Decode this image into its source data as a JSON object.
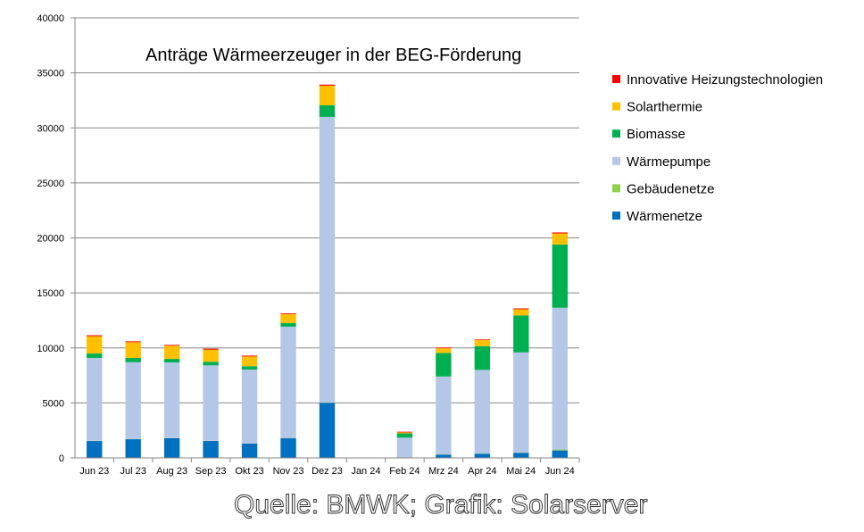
{
  "chart_data": {
    "type": "bar",
    "stacked": true,
    "title": "Anträge Wärmeerzeuger in der BEG-Förderung",
    "xlabel": "",
    "ylabel": "",
    "ylim": [
      0,
      40000
    ],
    "yticks": [
      "0",
      "5000",
      "10000",
      "15000",
      "20000",
      "25000",
      "30000",
      "35000",
      "40000"
    ],
    "ytick_values": [
      0,
      5000,
      10000,
      15000,
      20000,
      25000,
      30000,
      35000,
      40000
    ],
    "grid": true,
    "legend_position": "right",
    "categories": [
      "Jun 23",
      "Jul 23",
      "Aug 23",
      "Sep 23",
      "Okt 23",
      "Nov 23",
      "Dez 23",
      "Jan 24",
      "Feb 24",
      "Mrz 24",
      "Apr 24",
      "Mai 24",
      "Jun 24"
    ],
    "series": [
      {
        "name": "Wärmenetze",
        "color": "#0070C0",
        "values": [
          1540,
          1700,
          1790,
          1540,
          1300,
          1790,
          5000,
          0,
          0,
          300,
          380,
          460,
          680
        ]
      },
      {
        "name": "Gebäudenetze",
        "color": "#92D050",
        "values": [
          20,
          20,
          20,
          20,
          20,
          20,
          20,
          0,
          10,
          20,
          20,
          20,
          80
        ]
      },
      {
        "name": "Wärmepumpe",
        "color": "#B4C7E7",
        "values": [
          7530,
          6980,
          6870,
          6850,
          6710,
          10120,
          25980,
          0,
          1830,
          7080,
          7600,
          9110,
          12890
        ]
      },
      {
        "name": "Biomasse",
        "color": "#00B050",
        "values": [
          400,
          390,
          320,
          330,
          300,
          320,
          1050,
          0,
          400,
          2140,
          2160,
          3360,
          5750
        ]
      },
      {
        "name": "Solarthermie",
        "color": "#FFC000",
        "values": [
          1570,
          1430,
          1200,
          1100,
          890,
          810,
          1780,
          0,
          80,
          430,
          570,
          560,
          1000
        ]
      },
      {
        "name": "Innovative Heizungstechnologien",
        "color": "#FF0000",
        "values": [
          90,
          80,
          70,
          90,
          80,
          70,
          100,
          0,
          60,
          60,
          50,
          80,
          90
        ]
      }
    ],
    "watermark": "Quelle: BMWK; Grafik: Solarserver"
  }
}
